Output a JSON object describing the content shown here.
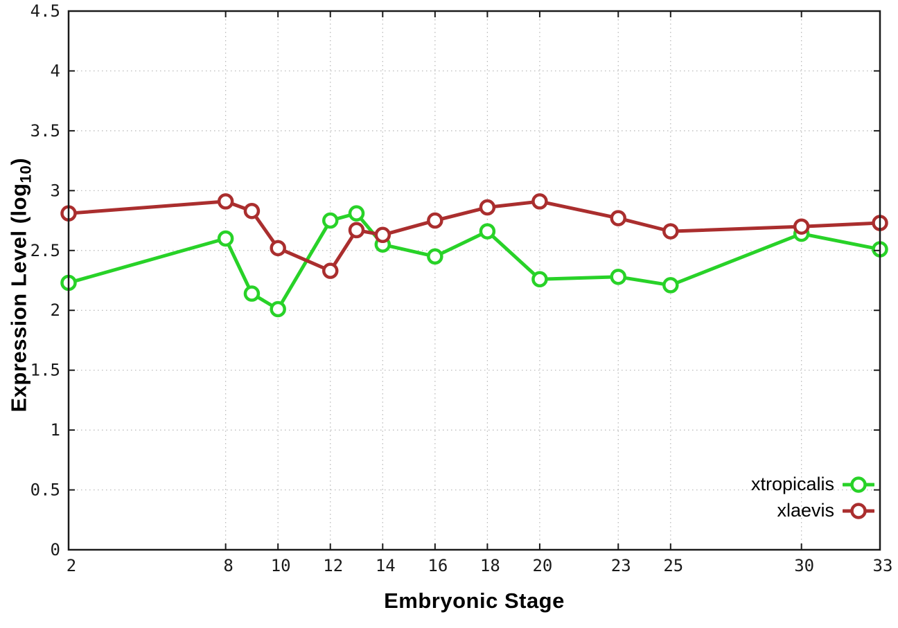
{
  "chart_data": {
    "type": "line",
    "title": "",
    "xlabel": "Embryonic Stage",
    "ylabel_main": "Expression Level (log",
    "ylabel_sub": "10",
    "ylabel_close": ")",
    "x": [
      2,
      8,
      9,
      10,
      12,
      13,
      14,
      16,
      18,
      20,
      23,
      25,
      30,
      33
    ],
    "x_ticks": [
      2,
      8,
      10,
      12,
      14,
      16,
      18,
      20,
      23,
      25,
      30,
      33
    ],
    "y_ticks": [
      0,
      0.5,
      1,
      1.5,
      2,
      2.5,
      3,
      3.5,
      4,
      4.5
    ],
    "xlim": [
      2,
      33
    ],
    "ylim": [
      0,
      4.5
    ],
    "grid": true,
    "legend_position": "bottom-right",
    "series": [
      {
        "name": "xtropicalis",
        "color": "#28d228",
        "values": [
          2.23,
          2.6,
          2.14,
          2.01,
          2.75,
          2.81,
          2.55,
          2.45,
          2.66,
          2.26,
          2.28,
          2.21,
          2.64,
          2.51
        ]
      },
      {
        "name": "xlaevis",
        "color": "#aa2e2e",
        "values": [
          2.81,
          2.91,
          2.83,
          2.52,
          2.33,
          2.67,
          2.63,
          2.75,
          2.86,
          2.91,
          2.77,
          2.66,
          2.7,
          2.73
        ]
      }
    ],
    "colors": {
      "border": "#1a1a1a",
      "grid": "#b5b5b5",
      "tick_text": "#1a1a1a",
      "background": "#ffffff"
    }
  }
}
